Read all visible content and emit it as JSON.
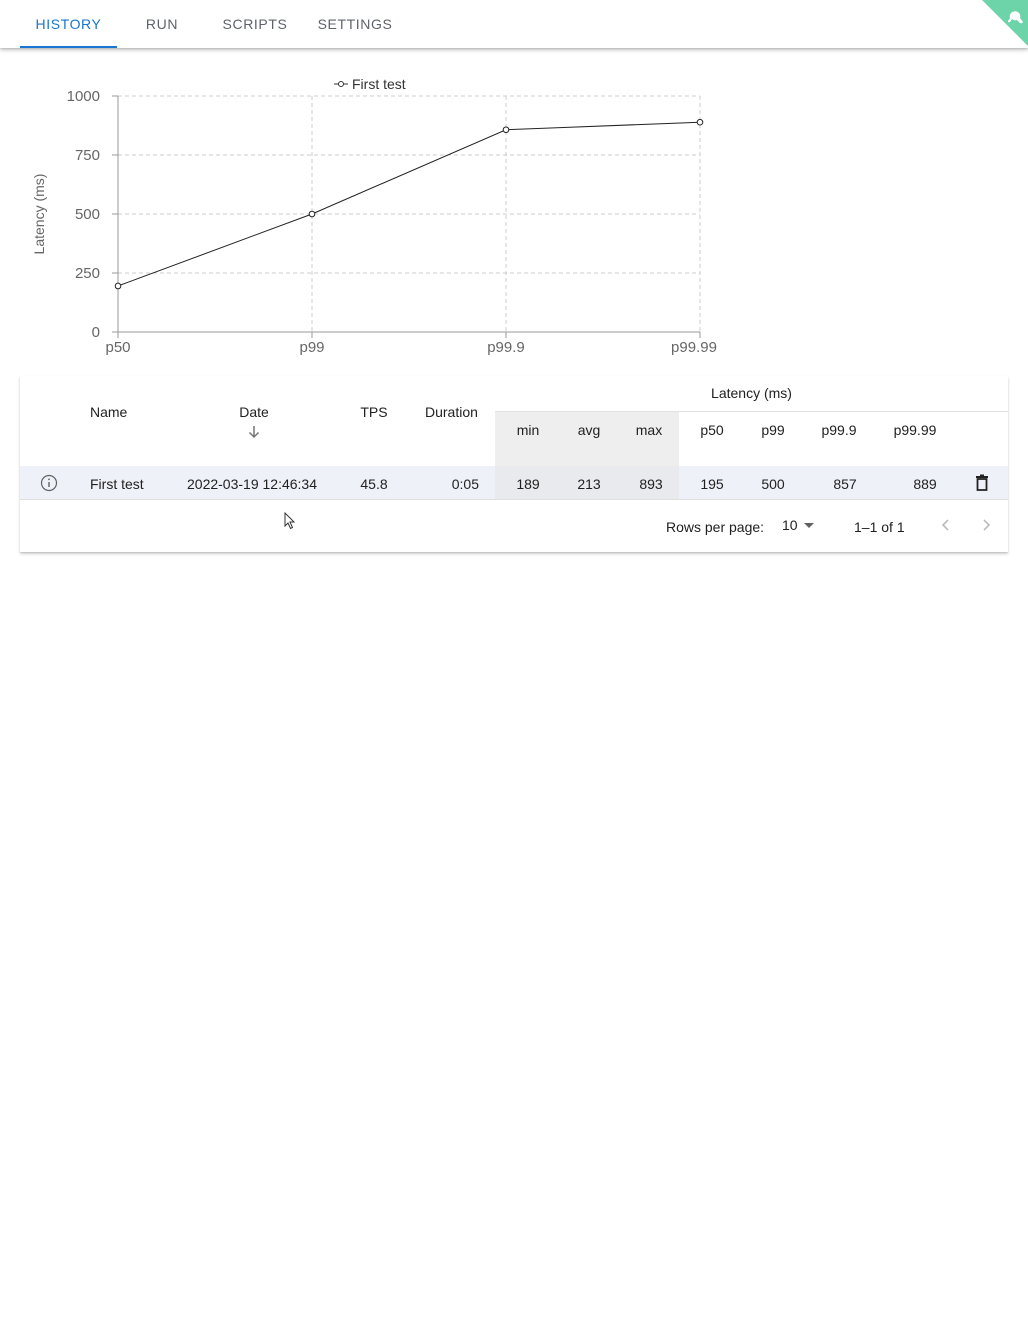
{
  "tabs": [
    {
      "label": "HISTORY",
      "active": true
    },
    {
      "label": "RUN",
      "active": false
    },
    {
      "label": "SCRIPTS",
      "active": false
    },
    {
      "label": "SETTINGS",
      "active": false
    }
  ],
  "chart_data": {
    "type": "line",
    "categories": [
      "p50",
      "p99",
      "p99.9",
      "p99.99"
    ],
    "series": [
      {
        "name": "First test",
        "values": [
          195,
          500,
          857,
          889
        ]
      }
    ],
    "ylabel": "Latency (ms)",
    "xlabel": "",
    "ylim": [
      0,
      1000
    ],
    "yticks": [
      "0",
      "250",
      "500",
      "750",
      "1000"
    ],
    "grid": true,
    "legend_position": "top"
  },
  "table": {
    "group_header": "Latency (ms)",
    "headers": {
      "name": "Name",
      "date": "Date",
      "tps": "TPS",
      "duration": "Duration",
      "min": "min",
      "avg": "avg",
      "max": "max",
      "p50": "p50",
      "p99": "p99",
      "p999": "p99.9",
      "p9999": "p99.99"
    },
    "rows": [
      {
        "name": "First test",
        "date": "2022-03-19 12:46:34",
        "tps": "45.8",
        "duration": "0:05",
        "min": "189",
        "avg": "213",
        "max": "893",
        "p50": "195",
        "p99": "500",
        "p999": "857",
        "p9999": "889"
      }
    ],
    "footer": {
      "rows_per_page_label": "Rows per page:",
      "rows_per_page_value": "10",
      "range": "1–1 of 1"
    }
  },
  "colors": {
    "accent": "#1976d2",
    "corner": "#6dd3a8"
  }
}
